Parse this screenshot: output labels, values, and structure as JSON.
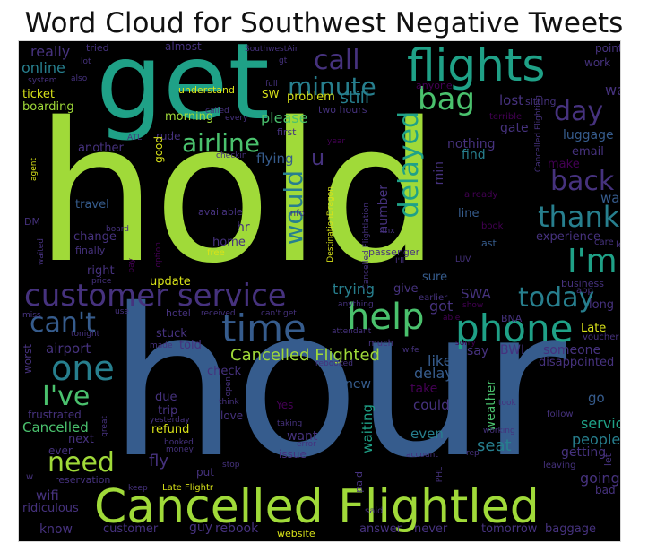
{
  "title": "Word Cloud for Southwest Negative Tweets",
  "palette": {
    "lime": "#a0da39",
    "green": "#4ac16d",
    "teal": "#1fa187",
    "cyan": "#277f8e",
    "blue": "#365c8d",
    "indigo": "#46327e",
    "purple": "#440154",
    "yellow": "#fde725"
  },
  "words": [
    {
      "text": "hold"
    },
    {
      "text": "hour"
    },
    {
      "text": "get"
    },
    {
      "text": "Cancelled Flightled"
    },
    {
      "text": "flights"
    },
    {
      "text": "help"
    },
    {
      "text": "phone"
    },
    {
      "text": "time"
    },
    {
      "text": "customer service"
    },
    {
      "text": "bag"
    },
    {
      "text": "call"
    },
    {
      "text": "minute"
    },
    {
      "text": "airline"
    },
    {
      "text": "delayed"
    },
    {
      "text": "day"
    },
    {
      "text": "back"
    },
    {
      "text": "thank"
    },
    {
      "text": "I'm"
    },
    {
      "text": "would"
    },
    {
      "text": "one"
    },
    {
      "text": "can't"
    },
    {
      "text": "today"
    },
    {
      "text": "I've"
    },
    {
      "text": "need"
    },
    {
      "text": "Cancelled Flighted"
    },
    {
      "text": "still"
    },
    {
      "text": "u"
    },
    {
      "text": "online"
    },
    {
      "text": "really"
    },
    {
      "text": "ticket"
    },
    {
      "text": "boarding"
    },
    {
      "text": "lost"
    },
    {
      "text": "wait"
    },
    {
      "text": "luggage"
    },
    {
      "text": "email"
    },
    {
      "text": "make"
    },
    {
      "text": "way"
    },
    {
      "text": "experience"
    },
    {
      "text": "left"
    },
    {
      "text": "long"
    },
    {
      "text": "Late"
    },
    {
      "text": "someone"
    },
    {
      "text": "disappointed"
    },
    {
      "text": "service"
    },
    {
      "text": "people"
    },
    {
      "text": "getting"
    },
    {
      "text": "going"
    },
    {
      "text": "bad"
    },
    {
      "text": "go"
    },
    {
      "text": "weather"
    },
    {
      "text": "waiting"
    },
    {
      "text": "seat"
    },
    {
      "text": "even"
    },
    {
      "text": "want"
    },
    {
      "text": "could"
    },
    {
      "text": "take"
    },
    {
      "text": "delay"
    },
    {
      "text": "new"
    },
    {
      "text": "like"
    },
    {
      "text": "say"
    },
    {
      "text": "BWI"
    },
    {
      "text": "got"
    },
    {
      "text": "SWA"
    },
    {
      "text": "trying"
    },
    {
      "text": "give"
    },
    {
      "text": "sure"
    },
    {
      "text": "line"
    },
    {
      "text": "book"
    },
    {
      "text": "last"
    },
    {
      "text": "number"
    },
    {
      "text": "nothing"
    },
    {
      "text": "find"
    },
    {
      "text": "gate"
    },
    {
      "text": "min"
    },
    {
      "text": "please"
    },
    {
      "text": "flying"
    },
    {
      "text": "problem"
    },
    {
      "text": "morning"
    },
    {
      "text": "understand"
    },
    {
      "text": "rude"
    },
    {
      "text": "good"
    },
    {
      "text": "another"
    },
    {
      "text": "travel"
    },
    {
      "text": "change"
    },
    {
      "text": "hr"
    },
    {
      "text": "home"
    },
    {
      "text": "available"
    },
    {
      "text": "finally"
    },
    {
      "text": "right"
    },
    {
      "text": "update"
    },
    {
      "text": "stuck"
    },
    {
      "text": "told"
    },
    {
      "text": "airport"
    },
    {
      "text": "check"
    },
    {
      "text": "due"
    },
    {
      "text": "trip"
    },
    {
      "text": "refund"
    },
    {
      "text": "fly"
    },
    {
      "text": "frustrated"
    },
    {
      "text": "Cancelled"
    },
    {
      "text": "next"
    },
    {
      "text": "ever"
    },
    {
      "text": "wifi"
    },
    {
      "text": "ridiculous"
    },
    {
      "text": "know"
    },
    {
      "text": "customer"
    },
    {
      "text": "guy"
    },
    {
      "text": "rebook"
    },
    {
      "text": "website"
    },
    {
      "text": "answer"
    },
    {
      "text": "never"
    },
    {
      "text": "tomorrow"
    },
    {
      "text": "baggage"
    },
    {
      "text": "worst"
    },
    {
      "text": "Yes"
    },
    {
      "text": "love"
    },
    {
      "text": "issue"
    },
    {
      "text": "put"
    },
    {
      "text": "almost"
    },
    {
      "text": "tried"
    },
    {
      "text": "SouthwestAir"
    },
    {
      "text": "point"
    },
    {
      "text": "work"
    },
    {
      "text": "sitting"
    },
    {
      "text": "anyone"
    },
    {
      "text": "full"
    },
    {
      "text": "SW"
    },
    {
      "text": "two hours"
    },
    {
      "text": "first"
    },
    {
      "text": "terrible"
    },
    {
      "text": "Cancelled Flighting"
    },
    {
      "text": "already"
    },
    {
      "text": "year"
    },
    {
      "text": "info"
    },
    {
      "text": "passenger"
    },
    {
      "text": "earlier"
    },
    {
      "text": "business"
    },
    {
      "text": "app"
    },
    {
      "text": "care"
    },
    {
      "text": "show"
    },
    {
      "text": "able"
    },
    {
      "text": "BNA"
    },
    {
      "text": "voucher"
    },
    {
      "text": "sorry"
    },
    {
      "text": "attendant"
    },
    {
      "text": "much"
    },
    {
      "text": "wife"
    },
    {
      "text": "can't get"
    },
    {
      "text": "received"
    },
    {
      "text": "hotel"
    },
    {
      "text": "made"
    },
    {
      "text": "tonight"
    },
    {
      "text": "price"
    },
    {
      "text": "pay"
    },
    {
      "text": "option"
    },
    {
      "text": "board"
    },
    {
      "text": "DM"
    },
    {
      "text": "waited"
    },
    {
      "text": "agent"
    },
    {
      "text": "ATL"
    },
    {
      "text": "checkin"
    },
    {
      "text": "system"
    },
    {
      "text": "also"
    },
    {
      "text": "lot"
    },
    {
      "text": "gt"
    },
    {
      "text": "called"
    },
    {
      "text": "every"
    },
    {
      "text": "free"
    },
    {
      "text": "DestinationDragon"
    },
    {
      "text": "Cancelled Flightlation"
    },
    {
      "text": "thx"
    },
    {
      "text": "I'll"
    },
    {
      "text": "LUV"
    },
    {
      "text": "anything"
    },
    {
      "text": "rebooked"
    },
    {
      "text": "open"
    },
    {
      "text": "think"
    },
    {
      "text": "yesterday"
    },
    {
      "text": "taking"
    },
    {
      "text": "error"
    },
    {
      "text": "booked"
    },
    {
      "text": "money"
    },
    {
      "text": "keep"
    },
    {
      "text": "Late Flightr"
    },
    {
      "text": "stop"
    },
    {
      "text": "paid"
    },
    {
      "text": "said"
    },
    {
      "text": "reservation"
    },
    {
      "text": "great"
    },
    {
      "text": "w"
    },
    {
      "text": "account"
    },
    {
      "text": "rep"
    },
    {
      "text": "PHL"
    },
    {
      "text": "working"
    },
    {
      "text": "leaving"
    },
    {
      "text": "let"
    },
    {
      "text": "follow"
    },
    {
      "text": "took"
    },
    {
      "text": "miss"
    },
    {
      "text": "use"
    }
  ]
}
